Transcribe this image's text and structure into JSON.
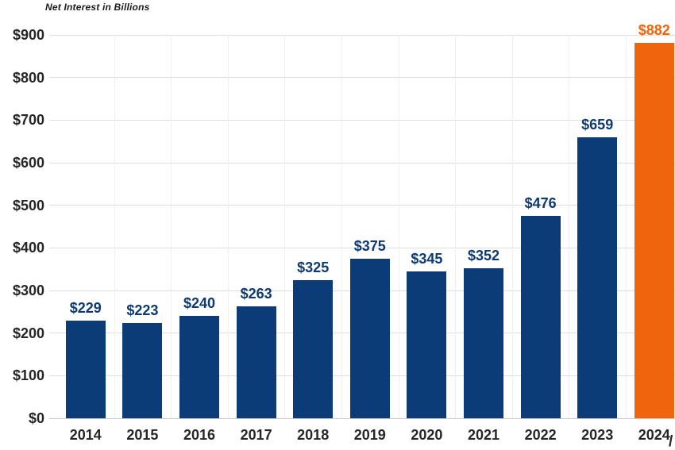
{
  "chart_data": {
    "type": "bar",
    "title": "Net Interest in Billions",
    "categories": [
      "2014",
      "2015",
      "2016",
      "2017",
      "2018",
      "2019",
      "2020",
      "2021",
      "2022",
      "2023",
      "2024"
    ],
    "values": [
      229,
      223,
      240,
      263,
      325,
      375,
      345,
      352,
      476,
      659,
      882
    ],
    "data_labels": [
      "$229",
      "$223",
      "$240",
      "$263",
      "$325",
      "$375",
      "$345",
      "$352",
      "$476",
      "$659",
      "$882"
    ],
    "xlabel": "",
    "ylabel": "",
    "ylim": [
      0,
      900
    ],
    "y_tick_values": [
      0,
      100,
      200,
      300,
      400,
      500,
      600,
      700,
      800,
      900
    ],
    "y_tick_labels": [
      "$0",
      "$100",
      "$200",
      "$300",
      "$400",
      "$500",
      "$600",
      "$700",
      "$800",
      "$900"
    ],
    "grid": "horizontal-light",
    "legend_position": "none",
    "bar_color": "#0c3c78",
    "highlight_bar_color": "#ee650d",
    "highlight_index": 10,
    "data_label_color": "#0d3a70",
    "highlight_data_label_color": "#ee650d",
    "axis_text_color": "#262626",
    "x_axis_edge_partial_char": "/"
  }
}
